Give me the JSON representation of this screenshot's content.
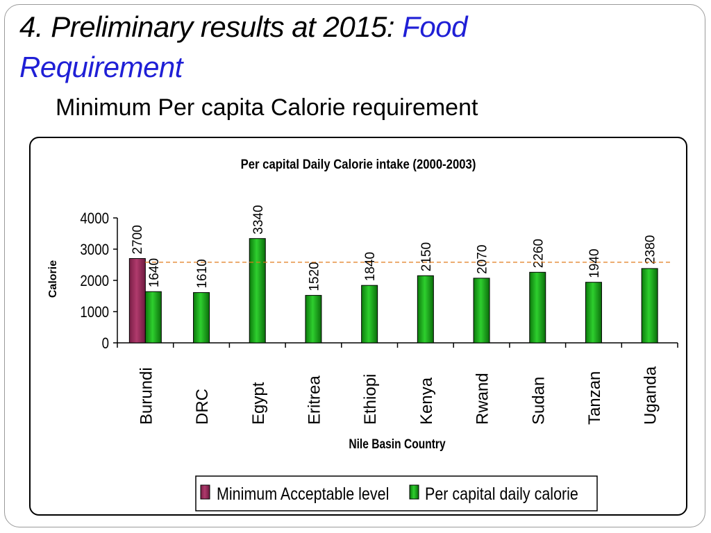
{
  "slide": {
    "title_part1": "4. Preliminary results at 2015: ",
    "title_part2": "Food",
    "title_part3": "Requirement",
    "subtitle": "Minimum Per capita Calorie requirement"
  },
  "colors": {
    "minimum_bar": "#9b2d5c",
    "daily_bar": "#1fa51f",
    "daily_bar_dark": "#0f6a0f",
    "reference_line": "#e07a1a",
    "title_accent": "#1f1fd6"
  },
  "chart_data": {
    "type": "bar",
    "title": "Per capital Daily Calorie intake (2000-2003)",
    "xlabel": "Nile Basin Country",
    "ylabel": "Calorie",
    "ylim": [
      0,
      4000
    ],
    "yticks": [
      "0",
      "1000",
      "2000",
      "3000",
      "4000"
    ],
    "categories": [
      "Burundi",
      "DRC",
      "Egypt",
      "Eritrea",
      "Ethiopi",
      "Kenya",
      "Rwand",
      "Sudan",
      "Tanzan",
      "Uganda"
    ],
    "series": [
      {
        "name": "Minimum Acceptable level",
        "values": [
          2700,
          null,
          null,
          null,
          null,
          null,
          null,
          null,
          null,
          null
        ]
      },
      {
        "name": "Per capital daily calorie",
        "values": [
          1640,
          1610,
          3340,
          1520,
          1840,
          2150,
          2070,
          2260,
          1940,
          2380
        ]
      }
    ],
    "reference_line": 2580,
    "grid": false,
    "legend_position": "bottom"
  }
}
